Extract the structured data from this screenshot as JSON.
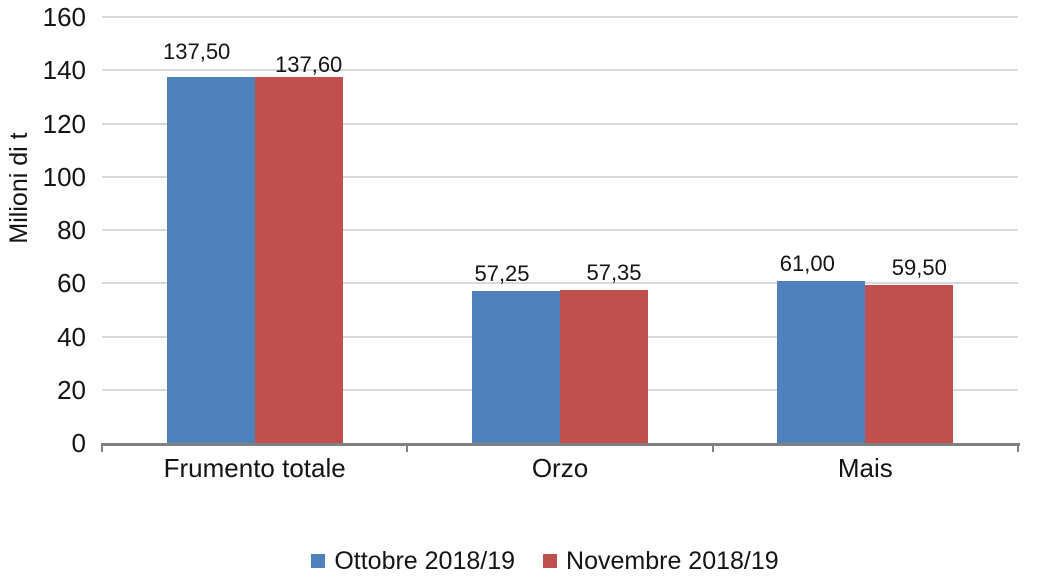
{
  "chart_data": {
    "type": "bar",
    "categories": [
      "Frumento totale",
      "Orzo",
      "Mais"
    ],
    "series": [
      {
        "name": "Ottobre 2018/19",
        "color": "#4F81BD",
        "values": [
          137.5,
          57.25,
          61.0
        ],
        "labels": [
          "137,50",
          "57,25",
          "61,00"
        ]
      },
      {
        "name": "Novembre 2018/19",
        "color": "#C0504D",
        "values": [
          137.6,
          57.35,
          59.5
        ],
        "labels": [
          "137,60",
          "57,35",
          "59,50"
        ]
      }
    ],
    "title": "",
    "xlabel": "",
    "ylabel": "Milioni di t",
    "ylim": [
      0,
      160
    ],
    "ytick_interval": 20,
    "ytick_labels": [
      "0",
      "20",
      "40",
      "60",
      "80",
      "100",
      "120",
      "140",
      "160"
    ],
    "grid": true,
    "legend_position": "bottom"
  },
  "colors": {
    "gridline": "#D9D9D9",
    "axis_line": "#808080",
    "text": "#141414",
    "background": "#FFFFFF",
    "series_ottobre": "#4F81BD",
    "series_novembre": "#C0504D"
  }
}
